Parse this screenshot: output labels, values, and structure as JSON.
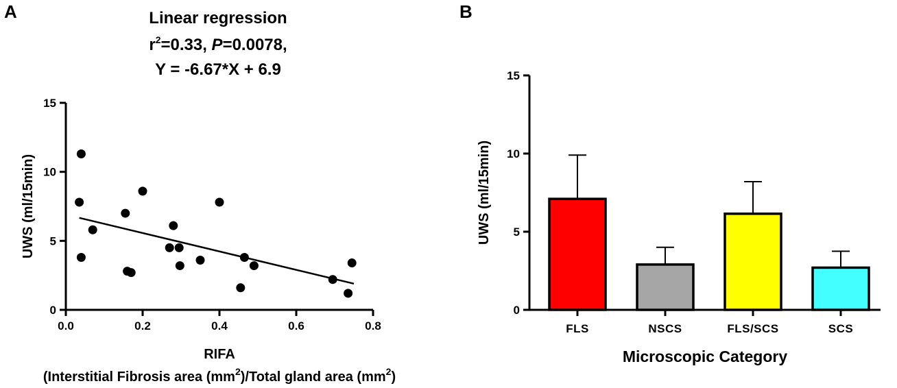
{
  "panels": {
    "a": {
      "letter": "A"
    },
    "b": {
      "letter": "B"
    }
  },
  "chart_data": [
    {
      "type": "scatter",
      "panel": "A",
      "title": "Linear regression",
      "stats": {
        "r2_prefix": "r",
        "r2_sup": "2",
        "r2_value": "=0.33, ",
        "p_label": "P",
        "p_value": "=0.0078,"
      },
      "equation": "Y = -6.67*X + 6.9",
      "xlabel": "RIFA",
      "xlabel2": {
        "part1": "(Interstitial Fibrosis area (mm",
        "sup1": "2",
        "part2": ")/Total gland area (mm",
        "sup2": "2",
        "part3": ")"
      },
      "ylabel": "UWS (ml/15min)",
      "xlim": [
        0,
        0.8
      ],
      "ylim": [
        0,
        15
      ],
      "xticks": [
        "0.0",
        "0.2",
        "0.4",
        "0.6",
        "0.8"
      ],
      "yticks": [
        "0",
        "5",
        "10",
        "15"
      ],
      "x": [
        0.035,
        0.04,
        0.04,
        0.07,
        0.155,
        0.16,
        0.17,
        0.2,
        0.27,
        0.28,
        0.295,
        0.297,
        0.35,
        0.4,
        0.455,
        0.465,
        0.49,
        0.695,
        0.735,
        0.745
      ],
      "y": [
        7.8,
        11.3,
        3.8,
        5.8,
        7.0,
        2.8,
        2.7,
        8.6,
        4.5,
        6.1,
        4.5,
        3.2,
        3.6,
        7.8,
        1.6,
        3.8,
        3.2,
        2.2,
        1.2,
        3.4
      ],
      "regression": {
        "slope": -6.67,
        "intercept": 6.9,
        "x_range": [
          0.035,
          0.75
        ]
      }
    },
    {
      "type": "bar",
      "panel": "B",
      "xlabel": "Microscopic Category",
      "ylabel": "UWS (ml/15min)",
      "ylim": [
        0,
        15
      ],
      "yticks": [
        "0",
        "5",
        "10",
        "15"
      ],
      "categories": [
        "FLS",
        "NSCS",
        "FLS/SCS",
        "SCS"
      ],
      "values": [
        7.1,
        2.9,
        6.15,
        2.7
      ],
      "errors": [
        2.8,
        1.1,
        2.05,
        1.05
      ],
      "colors": [
        "#ff0000",
        "#a6a6a6",
        "#ffff00",
        "#44ffff"
      ]
    }
  ]
}
